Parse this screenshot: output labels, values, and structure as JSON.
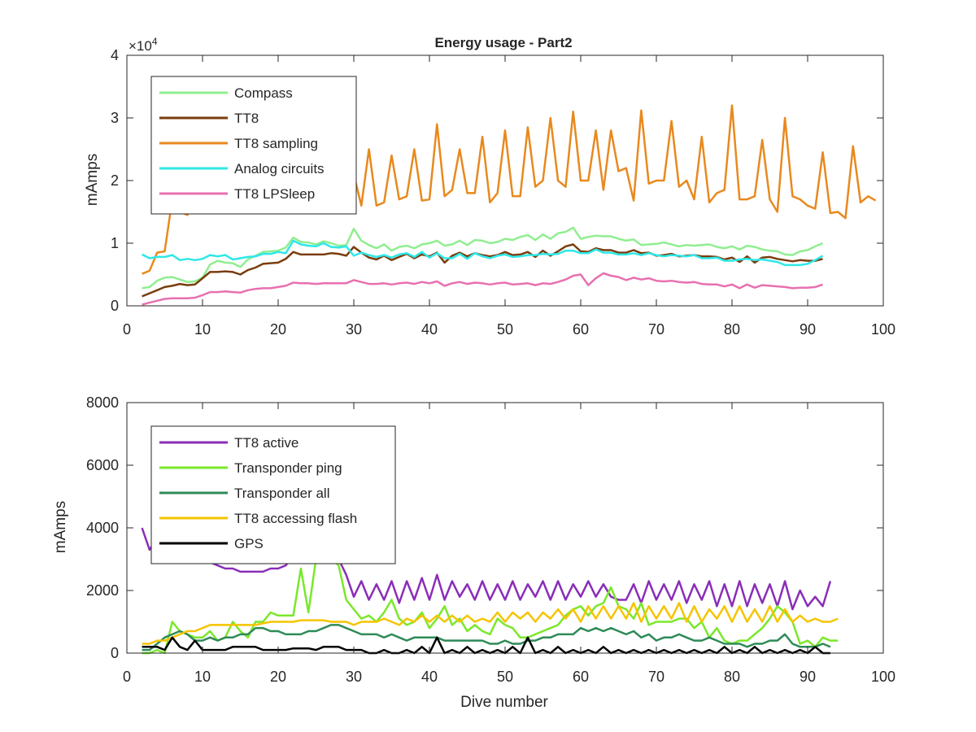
{
  "chart_data": [
    {
      "type": "line",
      "title": "Energy usage - Part2",
      "xlabel": "",
      "ylabel": "mAmps",
      "exponent_label": "×10",
      "exponent_power": "4",
      "xlim": [
        0,
        100
      ],
      "ylim": [
        0,
        40000
      ],
      "xticks": [
        0,
        10,
        20,
        30,
        40,
        50,
        60,
        70,
        80,
        90,
        100
      ],
      "yticks": [
        0,
        10000,
        20000,
        30000,
        40000
      ],
      "ytick_labels": [
        "0",
        "1",
        "2",
        "3",
        "4"
      ],
      "legend_position": "top-left",
      "grid": false,
      "x_start": 2,
      "series": [
        {
          "name": "Compass",
          "color": "#90EE90",
          "values": [
            2800,
            3000,
            4000,
            4500,
            4600,
            4200,
            3800,
            3900,
            4500,
            6600,
            7200,
            6900,
            6800,
            6200,
            7400,
            8000,
            8600,
            8700,
            8800,
            9300,
            10900,
            10200,
            10100,
            9800,
            10300,
            10000,
            9600,
            9700,
            12300,
            10400,
            9700,
            9200,
            9800,
            8800,
            9400,
            9600,
            9200,
            9800,
            10000,
            10400,
            9600,
            9800,
            10400,
            9700,
            10500,
            10400,
            10000,
            10200,
            10700,
            10500,
            11000,
            11300,
            10500,
            11400,
            10700,
            11600,
            11800,
            12500,
            10700,
            11000,
            11200,
            11100,
            11100,
            10700,
            10400,
            10600,
            9700,
            9800,
            9900,
            10100,
            9800,
            9500,
            9700,
            9600,
            9700,
            9800,
            9400,
            9200,
            9500,
            9000,
            9600,
            9400,
            9000,
            8800,
            8700,
            8200,
            8100,
            8700,
            8900,
            9500,
            10000
          ]
        },
        {
          "name": "TT8",
          "color": "#7A3D0D",
          "values": [
            1500,
            2000,
            2500,
            3000,
            3200,
            3500,
            3300,
            3400,
            4400,
            5400,
            5400,
            5500,
            5400,
            5000,
            5700,
            6100,
            6700,
            6800,
            6900,
            7500,
            8600,
            8200,
            8200,
            8200,
            8200,
            8400,
            8300,
            8000,
            9400,
            8500,
            7700,
            7400,
            8000,
            7300,
            7800,
            8300,
            7600,
            8200,
            7900,
            8500,
            6900,
            8000,
            8500,
            7900,
            8400,
            8100,
            7900,
            8100,
            8600,
            8100,
            8200,
            8600,
            7800,
            8800,
            8000,
            8700,
            9500,
            9800,
            8700,
            8600,
            9200,
            8900,
            8900,
            8500,
            8500,
            8900,
            8400,
            8500,
            8000,
            8100,
            8300,
            7900,
            8000,
            8100,
            7900,
            7900,
            7800,
            7400,
            7700,
            7000,
            7900,
            6900,
            7700,
            7800,
            7500,
            7300,
            7100,
            7300,
            7200,
            7200,
            7500
          ]
        },
        {
          "name": "TT8 sampling",
          "color": "#E8891E",
          "values": [
            5100,
            5600,
            8500,
            8700,
            17000,
            15000,
            14500,
            17000,
            18000,
            18500,
            19500,
            18500,
            17500,
            20000,
            18000,
            18000,
            20000,
            19000,
            21000,
            18500,
            19500,
            20500,
            18000,
            20000,
            19000,
            20000,
            24500,
            19000,
            21000,
            16000,
            25000,
            16000,
            16500,
            24000,
            17000,
            17500,
            25000,
            16800,
            17000,
            29000,
            17500,
            18500,
            25000,
            18000,
            18000,
            27000,
            16500,
            18000,
            28000,
            17500,
            17500,
            28500,
            19000,
            20000,
            30000,
            20000,
            19000,
            31000,
            20000,
            20000,
            28000,
            18500,
            28000,
            21500,
            22000,
            16800,
            31200,
            19500,
            20000,
            20000,
            29500,
            19000,
            20000,
            17000,
            27000,
            16500,
            18000,
            18500,
            32000,
            17000,
            17000,
            17500,
            26500,
            17000,
            15000,
            30000,
            17500,
            17000,
            16000,
            15500,
            24500,
            14800,
            15000,
            14000,
            25500,
            16500,
            17500,
            16800
          ]
        },
        {
          "name": "Analog circuits",
          "color": "#2EE8E8",
          "values": [
            8200,
            7600,
            7800,
            7800,
            8100,
            7300,
            7500,
            7300,
            7500,
            8100,
            7900,
            8100,
            7400,
            7600,
            7800,
            7900,
            8300,
            8300,
            8600,
            8400,
            10400,
            9800,
            9600,
            9500,
            10000,
            9400,
            9300,
            9500,
            8000,
            8500,
            8100,
            7800,
            8100,
            7700,
            8200,
            8400,
            7800,
            8600,
            7700,
            8400,
            7600,
            7600,
            8300,
            7500,
            8400,
            7900,
            7600,
            8000,
            8200,
            7800,
            7900,
            8100,
            8100,
            8300,
            8200,
            8300,
            8800,
            8800,
            8400,
            8400,
            9000,
            8500,
            8500,
            8200,
            8200,
            8400,
            8100,
            8400,
            8100,
            7900,
            8100,
            8000,
            7900,
            8100,
            7600,
            7600,
            7700,
            7200,
            7200,
            7400,
            7500,
            7300,
            7400,
            7200,
            7000,
            6500,
            6500,
            6500,
            6700,
            7300,
            8000
          ]
        },
        {
          "name": "TT8 LPSleep",
          "color": "#E870B0",
          "values": [
            200,
            500,
            800,
            1100,
            1200,
            1200,
            1200,
            1300,
            1700,
            2200,
            2200,
            2300,
            2200,
            2100,
            2500,
            2700,
            2800,
            2800,
            3000,
            3200,
            3700,
            3600,
            3600,
            3500,
            3600,
            3600,
            3600,
            3600,
            4100,
            3800,
            3500,
            3500,
            3600,
            3400,
            3600,
            3700,
            3500,
            3800,
            3600,
            3900,
            3200,
            3600,
            3800,
            3500,
            3700,
            3600,
            3400,
            3600,
            3700,
            3400,
            3500,
            3600,
            3300,
            3600,
            3500,
            3800,
            4200,
            4800,
            5000,
            3300,
            4400,
            5200,
            4800,
            4600,
            4100,
            4500,
            4200,
            4400,
            4000,
            3900,
            4000,
            3800,
            3700,
            3800,
            3500,
            3400,
            3400,
            3100,
            3400,
            2800,
            3400,
            2900,
            3300,
            3200,
            3100,
            3000,
            2800,
            2900,
            2900,
            3000,
            3400
          ]
        }
      ]
    },
    {
      "type": "line",
      "title": "",
      "xlabel": "Dive number",
      "ylabel": "mAmps",
      "xlim": [
        0,
        100
      ],
      "ylim": [
        0,
        8000
      ],
      "xticks": [
        0,
        10,
        20,
        30,
        40,
        50,
        60,
        70,
        80,
        90,
        100
      ],
      "yticks": [
        0,
        2000,
        4000,
        6000,
        8000
      ],
      "ytick_labels": [
        "0",
        "2000",
        "4000",
        "6000",
        "8000"
      ],
      "legend_position": "top-left",
      "grid": false,
      "x_start": 2,
      "series": [
        {
          "name": "TT8 active",
          "color": "#8A2DB8",
          "values": [
            4000,
            3300,
            3700,
            3500,
            3400,
            3400,
            3200,
            3100,
            2900,
            2900,
            2800,
            2700,
            2700,
            2600,
            2600,
            2600,
            2600,
            2700,
            2700,
            2800,
            3100,
            3000,
            3000,
            3000,
            3000,
            3000,
            3000,
            2500,
            1800,
            2300,
            1700,
            2200,
            1700,
            2300,
            1600,
            2300,
            1700,
            2400,
            1700,
            2500,
            1700,
            2300,
            1800,
            2200,
            1700,
            2300,
            1700,
            2200,
            1700,
            2300,
            1700,
            2200,
            1800,
            2300,
            1700,
            2300,
            1700,
            2200,
            1800,
            2300,
            1800,
            2200,
            1800,
            1700,
            1700,
            2200,
            1600,
            2300,
            1700,
            2200,
            1700,
            2300,
            1600,
            2200,
            1700,
            2300,
            1500,
            2200,
            1500,
            2300,
            1500,
            2200,
            1600,
            2200,
            1500,
            2300,
            1400,
            2000,
            1500,
            1800,
            1500,
            2300
          ]
        },
        {
          "name": "Transponder ping",
          "color": "#7AE82A",
          "values": [
            0,
            0,
            100,
            0,
            1000,
            700,
            600,
            500,
            500,
            700,
            400,
            500,
            1000,
            700,
            500,
            1000,
            1000,
            1300,
            1200,
            1200,
            1200,
            2700,
            1300,
            3000,
            3000,
            3000,
            2800,
            1700,
            1400,
            1100,
            1200,
            1000,
            1300,
            1700,
            1100,
            900,
            1000,
            1300,
            800,
            1100,
            1500,
            900,
            1100,
            700,
            900,
            700,
            600,
            1100,
            900,
            800,
            500,
            500,
            600,
            700,
            800,
            900,
            1200,
            1400,
            1500,
            1200,
            1500,
            1600,
            2100,
            1500,
            1400,
            1100,
            1600,
            900,
            1000,
            1000,
            1000,
            1100,
            1100,
            800,
            1000,
            500,
            800,
            400,
            300,
            400,
            400,
            600,
            800,
            1100,
            1500,
            1300,
            1000,
            300,
            400,
            200,
            500,
            400,
            400
          ]
        },
        {
          "name": "Transponder all",
          "color": "#2E8B57",
          "values": [
            100,
            100,
            300,
            500,
            600,
            700,
            600,
            400,
            400,
            500,
            400,
            500,
            500,
            600,
            600,
            800,
            800,
            700,
            700,
            600,
            600,
            600,
            700,
            700,
            800,
            900,
            900,
            800,
            700,
            600,
            600,
            600,
            500,
            600,
            500,
            400,
            500,
            500,
            500,
            500,
            400,
            400,
            400,
            400,
            400,
            400,
            300,
            300,
            400,
            300,
            300,
            400,
            400,
            500,
            500,
            600,
            600,
            600,
            800,
            700,
            800,
            700,
            800,
            700,
            600,
            700,
            500,
            600,
            400,
            500,
            500,
            600,
            500,
            400,
            400,
            500,
            400,
            300,
            300,
            300,
            200,
            300,
            300,
            400,
            400,
            600,
            300,
            200,
            200,
            200,
            300,
            200
          ]
        },
        {
          "name": "TT8 accessing flash",
          "color": "#F5C400",
          "values": [
            300,
            300,
            400,
            400,
            500,
            600,
            700,
            700,
            800,
            900,
            900,
            900,
            900,
            900,
            900,
            900,
            950,
            1000,
            1000,
            1000,
            1000,
            1050,
            1050,
            1050,
            1050,
            1000,
            1000,
            1000,
            900,
            1000,
            1000,
            1000,
            1100,
            1000,
            900,
            1100,
            1000,
            1200,
            1000,
            1200,
            1000,
            1200,
            1000,
            1200,
            1000,
            1100,
            1000,
            1300,
            1000,
            1300,
            1100,
            1300,
            1000,
            1300,
            1100,
            1400,
            1100,
            1400,
            1000,
            1500,
            1100,
            1500,
            1100,
            1500,
            1100,
            1600,
            1000,
            1500,
            1100,
            1500,
            1100,
            1600,
            1000,
            1500,
            1000,
            1400,
            1100,
            1500,
            1000,
            1500,
            1000,
            1400,
            1000,
            1500,
            1000,
            1400,
            1000,
            1200,
            1000,
            1100,
            1000,
            1000,
            1100
          ]
        },
        {
          "name": "GPS",
          "color": "#000000",
          "values": [
            200,
            200,
            200,
            100,
            500,
            200,
            100,
            400,
            100,
            100,
            100,
            100,
            200,
            200,
            200,
            200,
            100,
            100,
            100,
            100,
            150,
            150,
            150,
            100,
            200,
            200,
            200,
            100,
            100,
            100,
            0,
            0,
            100,
            0,
            0,
            100,
            0,
            200,
            0,
            500,
            0,
            100,
            0,
            200,
            0,
            100,
            0,
            100,
            0,
            200,
            0,
            500,
            0,
            100,
            0,
            200,
            0,
            100,
            0,
            100,
            0,
            200,
            0,
            100,
            0,
            100,
            0,
            100,
            0,
            100,
            0,
            100,
            0,
            100,
            0,
            100,
            0,
            200,
            0,
            100,
            0,
            200,
            0,
            100,
            0,
            100,
            0,
            100,
            0,
            200,
            0,
            0
          ]
        }
      ]
    }
  ]
}
